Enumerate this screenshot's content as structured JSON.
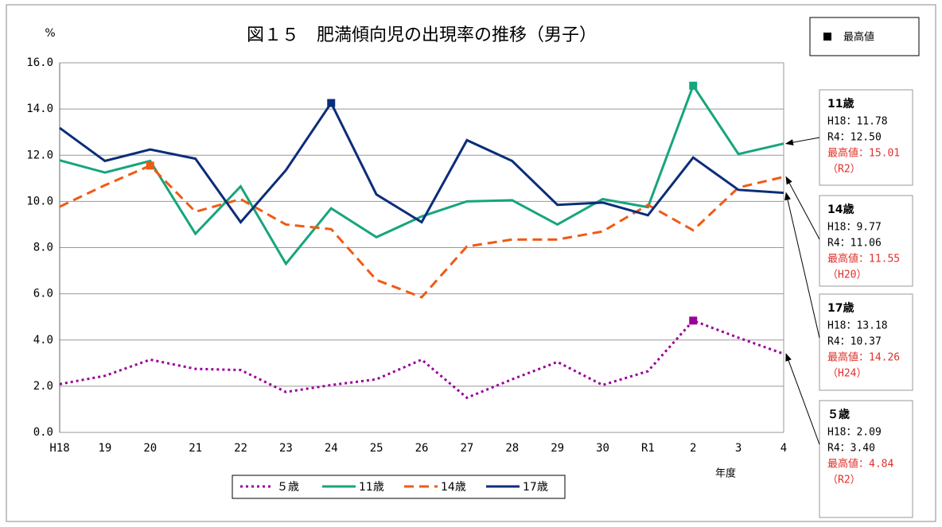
{
  "chart_data": {
    "type": "line",
    "title": "図１５　肥満傾向児の出現率の推移（男子）",
    "y_label": "%",
    "x_label": "年度",
    "max_legend": "最高値",
    "categories": [
      "H18",
      "19",
      "20",
      "21",
      "22",
      "23",
      "24",
      "25",
      "26",
      "27",
      "28",
      "29",
      "30",
      "R1",
      "2",
      "3",
      "4"
    ],
    "series": [
      {
        "name": "５歳",
        "color": "#990099",
        "linestyle": "dotted",
        "values": [
          2.09,
          2.45,
          3.15,
          2.75,
          2.7,
          1.75,
          2.05,
          2.3,
          3.15,
          1.5,
          2.3,
          3.05,
          2.05,
          2.65,
          4.84,
          4.1,
          3.4
        ]
      },
      {
        "name": "11歳",
        "color": "#16a57c",
        "linestyle": "solid",
        "values": [
          11.78,
          11.25,
          11.75,
          8.6,
          10.65,
          7.3,
          9.7,
          8.45,
          9.35,
          10.0,
          10.05,
          9.0,
          10.1,
          9.75,
          15.01,
          12.05,
          12.5
        ]
      },
      {
        "name": "14歳",
        "color": "#f05a14",
        "linestyle": "dashed",
        "values": [
          9.77,
          10.7,
          11.55,
          9.55,
          10.1,
          9.0,
          8.8,
          6.6,
          5.85,
          8.05,
          8.35,
          8.35,
          8.7,
          9.85,
          8.75,
          10.6,
          11.06
        ]
      },
      {
        "name": "17歳",
        "color": "#0b2d7a",
        "linestyle": "solid",
        "values": [
          13.18,
          11.75,
          12.25,
          11.85,
          9.1,
          11.35,
          14.26,
          10.3,
          9.1,
          12.65,
          11.75,
          9.85,
          9.95,
          9.4,
          11.9,
          10.5,
          10.37
        ]
      }
    ],
    "ylim": [
      0,
      16
    ],
    "yticks": [
      {
        "value": 0,
        "label": "0.0"
      },
      {
        "value": 2,
        "label": "2.0"
      },
      {
        "value": 4,
        "label": "4.0"
      },
      {
        "value": 6,
        "label": "6.0"
      },
      {
        "value": 8,
        "label": "8.0"
      },
      {
        "value": 10,
        "label": "10.0"
      },
      {
        "value": 12,
        "label": "12.0"
      },
      {
        "value": 14,
        "label": "14.0"
      },
      {
        "value": 16,
        "label": "16.0"
      }
    ],
    "grid": true,
    "legend": "bottom",
    "annotations": [
      {
        "title": "11歳",
        "lines": [
          "H18：11.78",
          "R4：12.50"
        ],
        "max": "最高値：15.01",
        "period": "（R2）"
      },
      {
        "title": "14歳",
        "lines": [
          "H18：9.77",
          "R4：11.06"
        ],
        "max": "最高値：11.55",
        "period": "（H20）"
      },
      {
        "title": "17歳",
        "lines": [
          "H18：13.18",
          "R4：10.37"
        ],
        "max": "最高値：14.26",
        "period": "（H24）"
      },
      {
        "title": "５歳",
        "lines": [
          "H18：2.09",
          "R4：3.40"
        ],
        "max": "最高値：4.84",
        "period": "（R2）"
      }
    ]
  }
}
